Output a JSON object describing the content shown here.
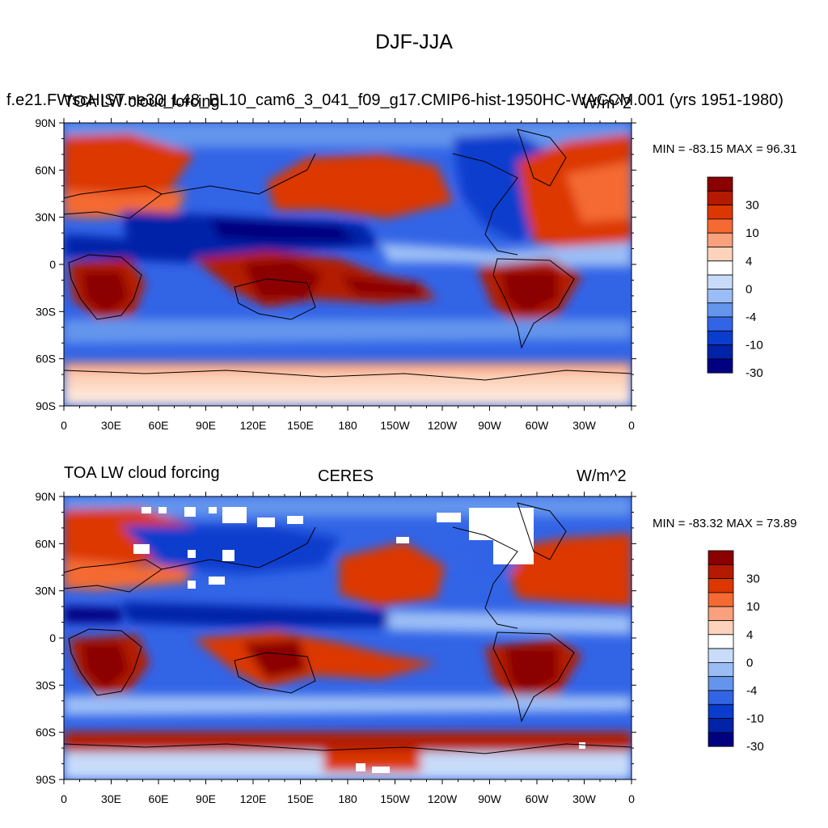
{
  "main_title": "DJF-JJA",
  "panels": [
    {
      "title_left": "f.e21.FWscHIST.ne30_L48_BL10_cam6_3_041_f09_g17.CMIP6-hist-1950HC-WACCM.001 (yrs 1951-1980)",
      "title_overlap": "TOA LW cloud forcing",
      "title_center": "",
      "units": "W/m^2",
      "minmax": "MIN = -83.15 MAX =  96.31"
    },
    {
      "title_left": "TOA LW cloud forcing",
      "title_center": "CERES",
      "units": "W/m^2",
      "minmax": "MIN = -83.32 MAX =  73.89"
    }
  ],
  "lat_ticks": [
    "90N",
    "60N",
    "30N",
    "0",
    "30S",
    "60S",
    "90S"
  ],
  "lon_ticks": [
    "0",
    "30E",
    "60E",
    "90E",
    "120E",
    "150E",
    "180",
    "150W",
    "120W",
    "90W",
    "60W",
    "30W",
    "0"
  ],
  "colorbar": {
    "labels": [
      "30",
      "10",
      "4",
      "0",
      "-4",
      "-10",
      "-30"
    ],
    "colors": [
      "#8b0000",
      "#b41a00",
      "#dc3700",
      "#f46a32",
      "#f9a07c",
      "#fdd3bb",
      "#ffffff",
      "#c8dcfa",
      "#9bbdf6",
      "#6495ed",
      "#3264e6",
      "#0a3ccd",
      "#0023a8",
      "#000080"
    ]
  },
  "chart_data": {
    "type": "map",
    "projection": "cylindrical equidistant",
    "field": "TOA LW cloud forcing difference",
    "season_difference": "DJF-JJA",
    "units": "W/m^2",
    "contour_levels": [
      -40,
      -30,
      -20,
      -10,
      -6,
      -4,
      -2,
      0,
      2,
      4,
      6,
      10,
      20,
      30,
      40
    ],
    "panels": [
      {
        "name": "model",
        "min": -83.15,
        "max": 96.31
      },
      {
        "name": "CERES",
        "min": -83.32,
        "max": 73.89
      }
    ]
  }
}
